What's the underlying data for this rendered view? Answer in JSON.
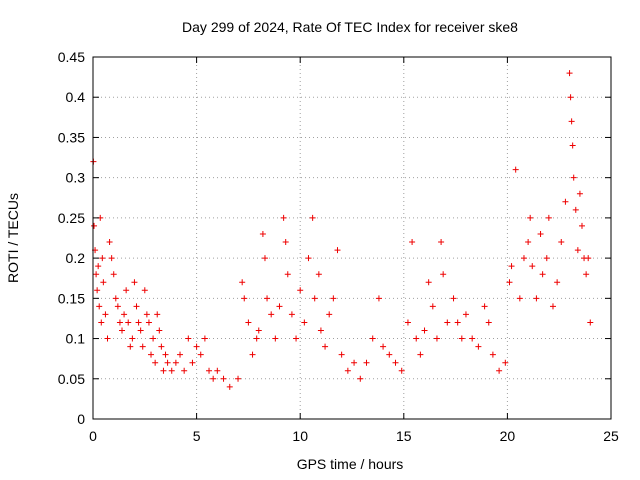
{
  "chart_data": {
    "type": "scatter",
    "title": "Day 299 of 2024, Rate Of TEC Index for receiver ske8",
    "xlabel": "GPS time / hours",
    "ylabel": "ROTI / TECUs",
    "xlim": [
      0,
      25
    ],
    "ylim": [
      0,
      0.45
    ],
    "xticks": [
      0,
      5,
      10,
      15,
      20,
      25
    ],
    "xtick_labels": [
      "0",
      "5",
      "10",
      "15",
      "20",
      "25"
    ],
    "yticks": [
      0,
      0.05,
      0.1,
      0.15,
      0.2,
      0.25,
      0.3,
      0.35,
      0.4,
      0.45
    ],
    "ytick_labels": [
      "0",
      "0.05",
      "0.1",
      "0.15",
      "0.2",
      "0.25",
      "0.3",
      "0.35",
      "0.4",
      "0.45"
    ],
    "grid": true,
    "marker": "plus",
    "series_color": "#ee0000",
    "series": [
      {
        "points": [
          [
            0.02,
            0.32
          ],
          [
            0.05,
            0.24
          ],
          [
            0.1,
            0.21
          ],
          [
            0.15,
            0.18
          ],
          [
            0.2,
            0.16
          ],
          [
            0.25,
            0.19
          ],
          [
            0.3,
            0.14
          ],
          [
            0.35,
            0.25
          ],
          [
            0.4,
            0.12
          ],
          [
            0.45,
            0.2
          ],
          [
            0.5,
            0.17
          ],
          [
            0.6,
            0.13
          ],
          [
            0.7,
            0.1
          ],
          [
            0.8,
            0.22
          ],
          [
            0.9,
            0.2
          ],
          [
            1.0,
            0.18
          ],
          [
            1.1,
            0.15
          ],
          [
            1.2,
            0.14
          ],
          [
            1.3,
            0.12
          ],
          [
            1.4,
            0.11
          ],
          [
            1.5,
            0.13
          ],
          [
            1.6,
            0.16
          ],
          [
            1.7,
            0.12
          ],
          [
            1.8,
            0.09
          ],
          [
            1.9,
            0.1
          ],
          [
            2.0,
            0.17
          ],
          [
            2.1,
            0.14
          ],
          [
            2.2,
            0.12
          ],
          [
            2.3,
            0.11
          ],
          [
            2.4,
            0.09
          ],
          [
            2.5,
            0.16
          ],
          [
            2.6,
            0.13
          ],
          [
            2.7,
            0.12
          ],
          [
            2.8,
            0.08
          ],
          [
            2.9,
            0.1
          ],
          [
            3.0,
            0.07
          ],
          [
            3.1,
            0.13
          ],
          [
            3.2,
            0.11
          ],
          [
            3.3,
            0.09
          ],
          [
            3.4,
            0.06
          ],
          [
            3.5,
            0.08
          ],
          [
            3.6,
            0.07
          ],
          [
            3.8,
            0.06
          ],
          [
            4.0,
            0.07
          ],
          [
            4.2,
            0.08
          ],
          [
            4.4,
            0.06
          ],
          [
            4.6,
            0.1
          ],
          [
            4.8,
            0.07
          ],
          [
            5.0,
            0.09
          ],
          [
            5.2,
            0.08
          ],
          [
            5.4,
            0.1
          ],
          [
            5.6,
            0.06
          ],
          [
            5.8,
            0.05
          ],
          [
            6.0,
            0.06
          ],
          [
            6.3,
            0.05
          ],
          [
            6.6,
            0.04
          ],
          [
            7.0,
            0.05
          ],
          [
            7.2,
            0.17
          ],
          [
            7.3,
            0.15
          ],
          [
            7.5,
            0.12
          ],
          [
            7.7,
            0.08
          ],
          [
            7.9,
            0.1
          ],
          [
            8.0,
            0.11
          ],
          [
            8.2,
            0.23
          ],
          [
            8.3,
            0.2
          ],
          [
            8.4,
            0.15
          ],
          [
            8.6,
            0.13
          ],
          [
            8.8,
            0.1
          ],
          [
            9.0,
            0.14
          ],
          [
            9.2,
            0.25
          ],
          [
            9.3,
            0.22
          ],
          [
            9.4,
            0.18
          ],
          [
            9.6,
            0.13
          ],
          [
            9.8,
            0.1
          ],
          [
            10.0,
            0.16
          ],
          [
            10.2,
            0.12
          ],
          [
            10.4,
            0.2
          ],
          [
            10.6,
            0.25
          ],
          [
            10.7,
            0.15
          ],
          [
            10.9,
            0.18
          ],
          [
            11.0,
            0.11
          ],
          [
            11.2,
            0.09
          ],
          [
            11.4,
            0.13
          ],
          [
            11.6,
            0.15
          ],
          [
            11.8,
            0.21
          ],
          [
            12.0,
            0.08
          ],
          [
            12.3,
            0.06
          ],
          [
            12.6,
            0.07
          ],
          [
            12.9,
            0.05
          ],
          [
            13.2,
            0.07
          ],
          [
            13.5,
            0.1
          ],
          [
            13.8,
            0.15
          ],
          [
            14.0,
            0.09
          ],
          [
            14.3,
            0.08
          ],
          [
            14.6,
            0.07
          ],
          [
            14.9,
            0.06
          ],
          [
            15.2,
            0.12
          ],
          [
            15.4,
            0.22
          ],
          [
            15.6,
            0.1
          ],
          [
            15.8,
            0.08
          ],
          [
            16.0,
            0.11
          ],
          [
            16.2,
            0.17
          ],
          [
            16.4,
            0.14
          ],
          [
            16.6,
            0.1
          ],
          [
            16.8,
            0.22
          ],
          [
            16.9,
            0.18
          ],
          [
            17.1,
            0.12
          ],
          [
            17.4,
            0.15
          ],
          [
            17.6,
            0.12
          ],
          [
            17.8,
            0.1
          ],
          [
            18.0,
            0.13
          ],
          [
            18.3,
            0.1
          ],
          [
            18.6,
            0.09
          ],
          [
            18.9,
            0.14
          ],
          [
            19.1,
            0.12
          ],
          [
            19.3,
            0.08
          ],
          [
            19.6,
            0.06
          ],
          [
            19.9,
            0.07
          ],
          [
            20.1,
            0.17
          ],
          [
            20.2,
            0.19
          ],
          [
            20.4,
            0.31
          ],
          [
            20.6,
            0.15
          ],
          [
            20.8,
            0.2
          ],
          [
            21.0,
            0.22
          ],
          [
            21.1,
            0.25
          ],
          [
            21.2,
            0.19
          ],
          [
            21.4,
            0.15
          ],
          [
            21.6,
            0.23
          ],
          [
            21.7,
            0.18
          ],
          [
            21.9,
            0.2
          ],
          [
            22.0,
            0.25
          ],
          [
            22.2,
            0.14
          ],
          [
            22.4,
            0.17
          ],
          [
            22.6,
            0.22
          ],
          [
            22.8,
            0.27
          ],
          [
            23.0,
            0.43
          ],
          [
            23.05,
            0.4
          ],
          [
            23.1,
            0.37
          ],
          [
            23.15,
            0.34
          ],
          [
            23.2,
            0.3
          ],
          [
            23.3,
            0.26
          ],
          [
            23.4,
            0.21
          ],
          [
            23.5,
            0.28
          ],
          [
            23.6,
            0.24
          ],
          [
            23.7,
            0.2
          ],
          [
            23.8,
            0.18
          ],
          [
            23.9,
            0.2
          ],
          [
            24.0,
            0.12
          ]
        ]
      }
    ]
  }
}
